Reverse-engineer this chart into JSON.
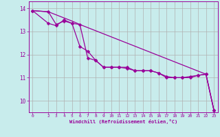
{
  "background_color": "#c8ecec",
  "grid_color": "#b0b0b0",
  "line_color": "#990099",
  "marker": "D",
  "marker_size": 2.5,
  "xlabel": "Windchill (Refroidissement éolien,°C)",
  "xlabel_color": "#990099",
  "xlim": [
    -0.5,
    23.5
  ],
  "ylim": [
    9.5,
    14.3
  ],
  "yticks": [
    10,
    11,
    12,
    13,
    14
  ],
  "xticks": [
    0,
    2,
    3,
    4,
    5,
    6,
    7,
    8,
    9,
    10,
    11,
    12,
    13,
    14,
    15,
    16,
    17,
    18,
    19,
    20,
    21,
    22,
    23
  ],
  "line1_x": [
    0,
    2,
    3,
    4,
    5,
    6,
    7,
    8,
    9,
    10,
    11,
    12,
    13,
    14,
    15,
    16,
    17,
    18,
    19,
    20,
    21,
    22,
    23
  ],
  "line1_y": [
    13.9,
    13.85,
    13.3,
    13.45,
    13.35,
    13.3,
    11.85,
    11.75,
    11.45,
    11.45,
    11.45,
    11.45,
    11.3,
    11.3,
    11.3,
    11.2,
    11.05,
    11.0,
    11.0,
    11.05,
    11.1,
    11.15,
    9.6
  ],
  "line2_x": [
    0,
    2,
    3,
    4,
    5,
    6,
    7,
    8,
    9,
    10,
    11,
    12,
    13,
    14,
    15,
    16,
    17,
    18,
    19,
    20,
    21,
    22,
    23
  ],
  "line2_y": [
    13.9,
    13.35,
    13.25,
    13.5,
    13.35,
    12.35,
    12.15,
    11.75,
    11.45,
    11.45,
    11.45,
    11.4,
    11.3,
    11.3,
    11.3,
    11.2,
    11.0,
    11.0,
    11.0,
    11.0,
    11.1,
    11.15,
    9.6
  ],
  "line3_x": [
    0,
    2,
    5,
    6,
    22,
    23
  ],
  "line3_y": [
    13.9,
    13.85,
    13.45,
    13.3,
    11.15,
    9.6
  ]
}
